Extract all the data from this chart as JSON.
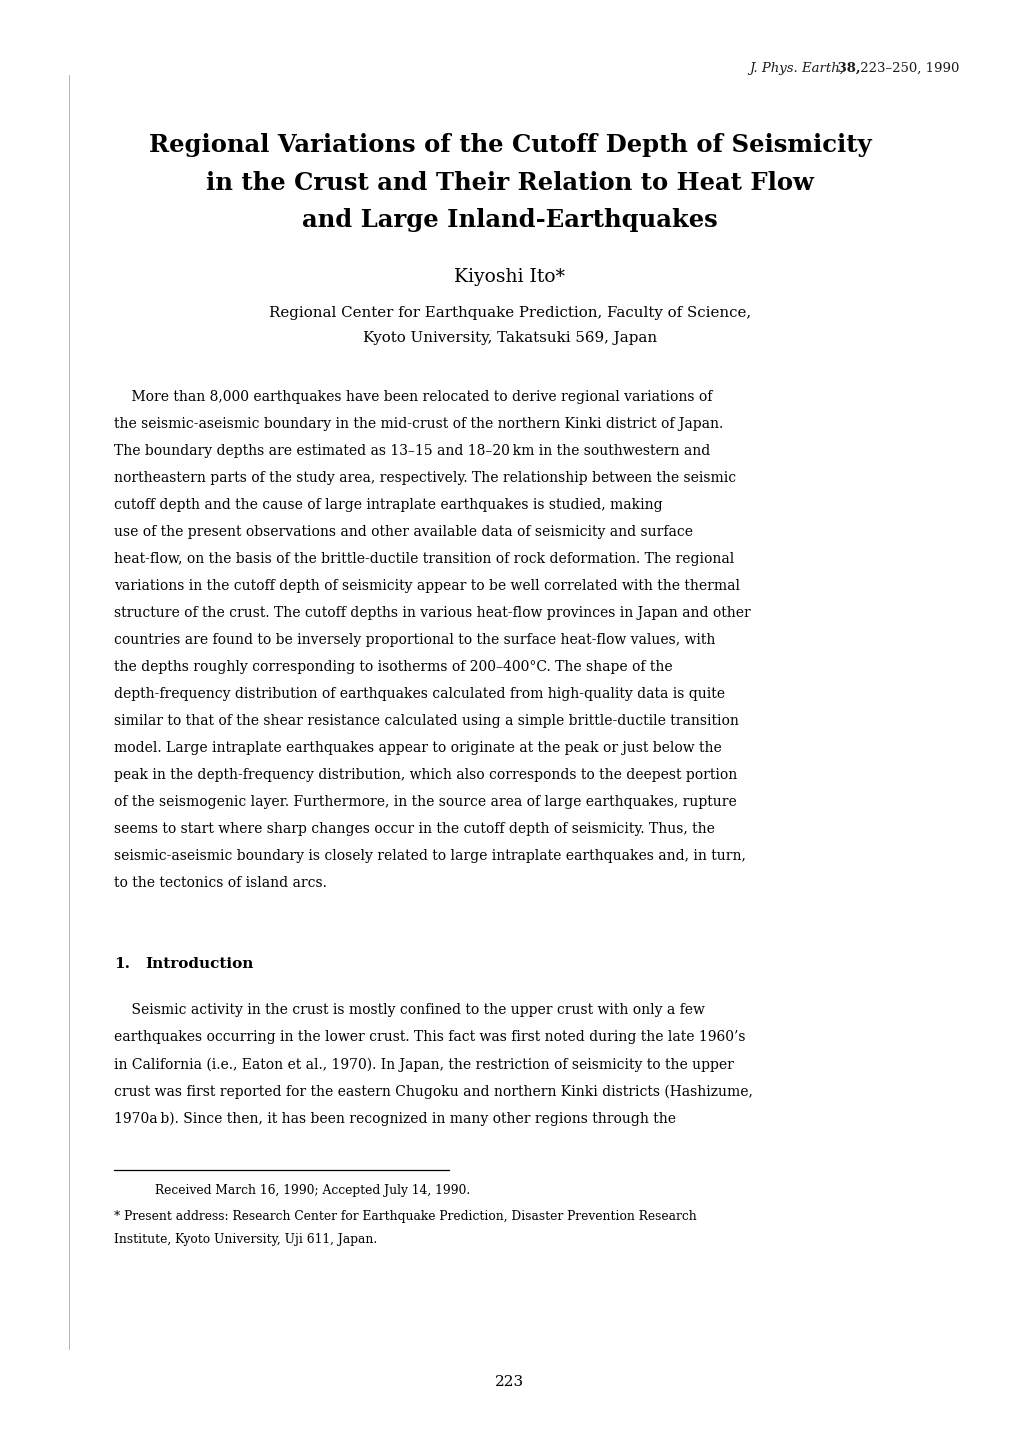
{
  "background_color": "#ffffff",
  "journal_ref_italic": "J. Phys. Earth,",
  "journal_ref_bold": " 38,",
  "journal_ref_rest": " 223–250, 1990",
  "title_line1": "Regional Variations of the Cutoff Depth of Seismicity",
  "title_line2": "in the Crust and Their Relation to Heat Flow",
  "title_line3": "and Large Inland-Earthquakes",
  "author": "Kiyoshi Ito*",
  "affiliation1": "Regional Center for Earthquake Prediction, Faculty of Science,",
  "affiliation2": "Kyoto University, Takatsuki 569, Japan",
  "abstract_indent": "    More than 8,000 earthquakes have been relocated to derive regional variations of",
  "abstract_lines": [
    "More than 8,000 earthquakes have been relocated to derive regional variations of",
    "the seismic-aseismic boundary in the mid-crust of the northern Kinki district of Japan.",
    "The boundary depths are estimated as 13–15 and 18–20 km in the southwestern and",
    "northeastern parts of the study area, respectively. The relationship between the seismic",
    "cutoff depth and the cause of large intraplate earthquakes is studied, making",
    "use of the present observations and other available data of seismicity and surface",
    "heat-flow, on the basis of the brittle-ductile transition of rock deformation. The regional",
    "variations in the cutoff depth of seismicity appear to be well correlated with the thermal",
    "structure of the crust. The cutoff depths in various heat-flow provinces in Japan and other",
    "countries are found to be inversely proportional to the surface heat-flow values, with",
    "the depths roughly corresponding to isotherms of 200–400°C. The shape of the",
    "depth-frequency distribution of earthquakes calculated from high-quality data is quite",
    "similar to that of the shear resistance calculated using a simple brittle-ductile transition",
    "model. Large intraplate earthquakes appear to originate at the peak or just below the",
    "peak in the depth-frequency distribution, which also corresponds to the deepest portion",
    "of the seismogenic layer. Furthermore, in the source area of large earthquakes, rupture",
    "seems to start where sharp changes occur in the cutoff depth of seismicity. Thus, the",
    "seismic-aseismic boundary is closely related to large intraplate earthquakes and, in turn,",
    "to the tectonics of island arcs."
  ],
  "section_label": "1.",
  "section_title": "Introduction",
  "intro_lines": [
    "    Seismic activity in the crust is mostly confined to the upper crust with only a few",
    "earthquakes occurring in the lower crust. This fact was first noted during the late 1960’s",
    "in California (i.e., Eaton et al., 1970). In Japan, the restriction of seismicity to the upper",
    "crust was first reported for the eastern Chugoku and northern Kinki districts (Hashizume,",
    "1970a b). Since then, it has been recognized in many other regions through the"
  ],
  "footnote_line1": "Received March 16, 1990; Accepted July 14, 1990.",
  "footnote_line2a": "* Present address: Research Center for Earthquake Prediction, Disaster Prevention Research",
  "footnote_line2b": "Institute, Kyoto University, Uji 611, Japan.",
  "page_number": "223"
}
